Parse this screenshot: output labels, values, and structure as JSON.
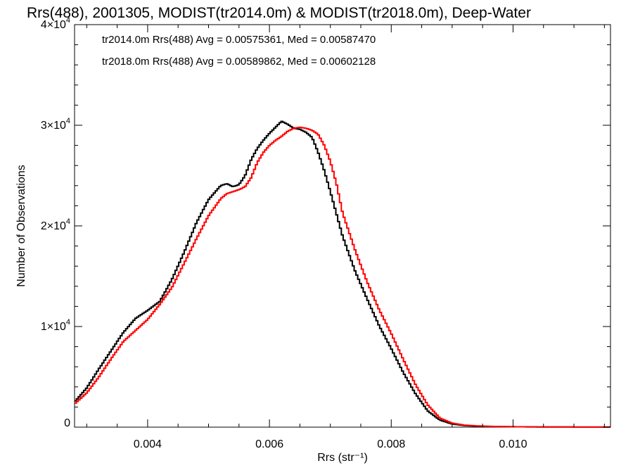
{
  "chart_data": {
    "type": "line",
    "title": "Rrs(488), 2001305, MODIST(tr2014.0m) & MODIST(tr2018.0m), Deep-Water",
    "xlabel": "Rrs (str⁻¹)",
    "ylabel": "Number of Observations",
    "xlim": [
      0.0028,
      0.0116
    ],
    "ylim": [
      0,
      40000
    ],
    "xticks": [
      {
        "value": 0.004,
        "label": "0.004"
      },
      {
        "value": 0.006,
        "label": "0.006"
      },
      {
        "value": 0.008,
        "label": "0.008"
      },
      {
        "value": 0.01,
        "label": "0.010"
      }
    ],
    "yticks": [
      {
        "value": 0,
        "mant": "0",
        "exp": ""
      },
      {
        "value": 10000,
        "mant": "1×10",
        "exp": "4"
      },
      {
        "value": 20000,
        "mant": "2×10",
        "exp": "4"
      },
      {
        "value": 30000,
        "mant": "3×10",
        "exp": "4"
      },
      {
        "value": 40000,
        "mant": "4×10",
        "exp": "4"
      }
    ],
    "step": true,
    "grid": false,
    "annotations": [
      {
        "text": "tr2014.0m Rrs(488) Avg = 0.00575361, Med = 0.00587470",
        "color": "#000000"
      },
      {
        "text": "tr2018.0m Rrs(488) Avg = 0.00589862, Med = 0.00602128",
        "color": "#ff0000"
      }
    ],
    "series": [
      {
        "color": "#000000",
        "x": [
          0.0028,
          0.003,
          0.0032,
          0.0034,
          0.0036,
          0.0038,
          0.004,
          0.0042,
          0.0044,
          0.0046,
          0.0048,
          0.005,
          0.0052,
          0.0053,
          0.0054,
          0.0055,
          0.0056,
          0.0057,
          0.0058,
          0.0059,
          0.006,
          0.0061,
          0.0062,
          0.0063,
          0.0064,
          0.0065,
          0.0066,
          0.0067,
          0.0068,
          0.0069,
          0.007,
          0.0072,
          0.0074,
          0.0076,
          0.0078,
          0.008,
          0.0082,
          0.0084,
          0.0086,
          0.0088,
          0.009,
          0.0092,
          0.0094,
          0.0096,
          0.0098,
          0.01,
          0.0105,
          0.011,
          0.0116
        ],
        "y": [
          2500,
          3900,
          5800,
          7600,
          9400,
          10800,
          11600,
          12500,
          14700,
          17400,
          20300,
          22600,
          24000,
          24200,
          23900,
          24100,
          25000,
          26600,
          27700,
          28500,
          29200,
          29800,
          30400,
          30100,
          29700,
          29600,
          29300,
          28800,
          27300,
          25500,
          23400,
          19000,
          15600,
          12800,
          10100,
          7800,
          5400,
          3300,
          1600,
          700,
          320,
          160,
          100,
          70,
          50,
          40,
          20,
          10,
          5
        ]
      },
      {
        "color": "#ff0000",
        "x": [
          0.0028,
          0.003,
          0.0032,
          0.0034,
          0.0036,
          0.0038,
          0.004,
          0.0042,
          0.0044,
          0.0046,
          0.0048,
          0.005,
          0.0052,
          0.0053,
          0.0054,
          0.0055,
          0.0056,
          0.0057,
          0.0058,
          0.0059,
          0.006,
          0.0061,
          0.0062,
          0.0063,
          0.0064,
          0.0065,
          0.0066,
          0.0067,
          0.0068,
          0.0069,
          0.007,
          0.0071,
          0.0072,
          0.0074,
          0.0076,
          0.0078,
          0.008,
          0.0082,
          0.0084,
          0.0086,
          0.0088,
          0.009,
          0.0092,
          0.0094,
          0.0096,
          0.0098,
          0.01,
          0.0105,
          0.011,
          0.0116
        ],
        "y": [
          2300,
          3400,
          5000,
          6800,
          8500,
          9600,
          10700,
          12200,
          13900,
          16300,
          18700,
          21000,
          22700,
          23200,
          23400,
          23600,
          23900,
          24800,
          26300,
          27300,
          28000,
          28500,
          28900,
          29400,
          29700,
          29800,
          29700,
          29500,
          29100,
          28000,
          26400,
          24200,
          21300,
          17700,
          14500,
          11700,
          9300,
          6700,
          4200,
          2200,
          900,
          400,
          200,
          130,
          80,
          60,
          40,
          20,
          10,
          5
        ]
      }
    ]
  }
}
